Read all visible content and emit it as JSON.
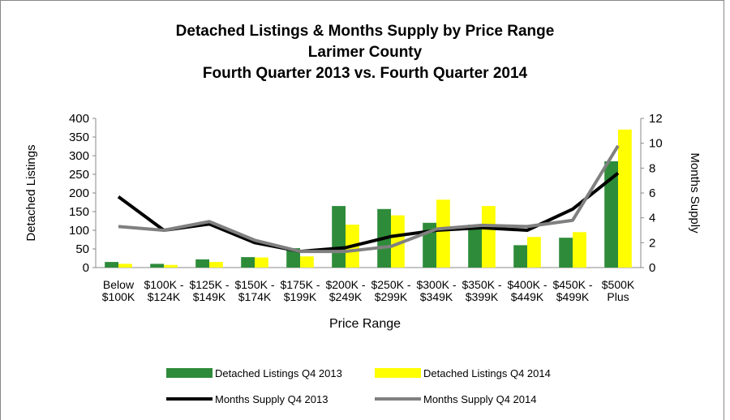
{
  "chart_data": {
    "type": "combo",
    "title": [
      "Detached Listings & Months Supply by Price Range",
      "Larimer County",
      "Fourth Quarter 2013 vs. Fourth Quarter 2014"
    ],
    "x_label": "Price Range",
    "y_label": "Detached Listings",
    "y2_label": "Months Supply",
    "categories": [
      [
        "Below",
        "$100K"
      ],
      [
        "$100K -",
        "$124K"
      ],
      [
        "$125K -",
        "$149K"
      ],
      [
        "$150K -",
        "$174K"
      ],
      [
        "$175K -",
        "$199K"
      ],
      [
        "$200K -",
        "$249K"
      ],
      [
        "$250K -",
        "$299K"
      ],
      [
        "$300K -",
        "$349K"
      ],
      [
        "$350K -",
        "$399K"
      ],
      [
        "$400K -",
        "$449K"
      ],
      [
        "$450K -",
        "$499K"
      ],
      [
        "$500K",
        "Plus"
      ]
    ],
    "series": [
      {
        "name": "Detached Listings Q4 2013",
        "type": "bar",
        "color": "#2e8b3a",
        "values": [
          15,
          10,
          22,
          28,
          52,
          165,
          157,
          120,
          115,
          60,
          80,
          285
        ]
      },
      {
        "name": "Detached Listings Q4 2014",
        "type": "bar",
        "color": "#ffff00",
        "values": [
          10,
          7,
          15,
          27,
          30,
          115,
          140,
          182,
          165,
          82,
          95,
          370
        ]
      },
      {
        "name": "Months Supply Q4 2013",
        "type": "line",
        "axis": "y2",
        "color": "#000000",
        "values": [
          5.7,
          3.0,
          3.5,
          2.0,
          1.3,
          1.6,
          2.5,
          3.0,
          3.2,
          3.0,
          4.7,
          7.6
        ]
      },
      {
        "name": "Months Supply Q4 2014",
        "type": "line",
        "axis": "y2",
        "color": "#808080",
        "values": [
          3.3,
          3.0,
          3.7,
          2.2,
          1.3,
          1.3,
          1.7,
          3.1,
          3.4,
          3.3,
          3.8,
          9.8
        ]
      }
    ],
    "ylim": [
      0,
      400
    ],
    "yticks": [
      0,
      50,
      100,
      150,
      200,
      250,
      300,
      350,
      400
    ],
    "y2lim": [
      0,
      12
    ],
    "y2ticks": [
      0,
      2,
      4,
      6,
      8,
      10,
      12
    ],
    "legend": "bottom"
  }
}
